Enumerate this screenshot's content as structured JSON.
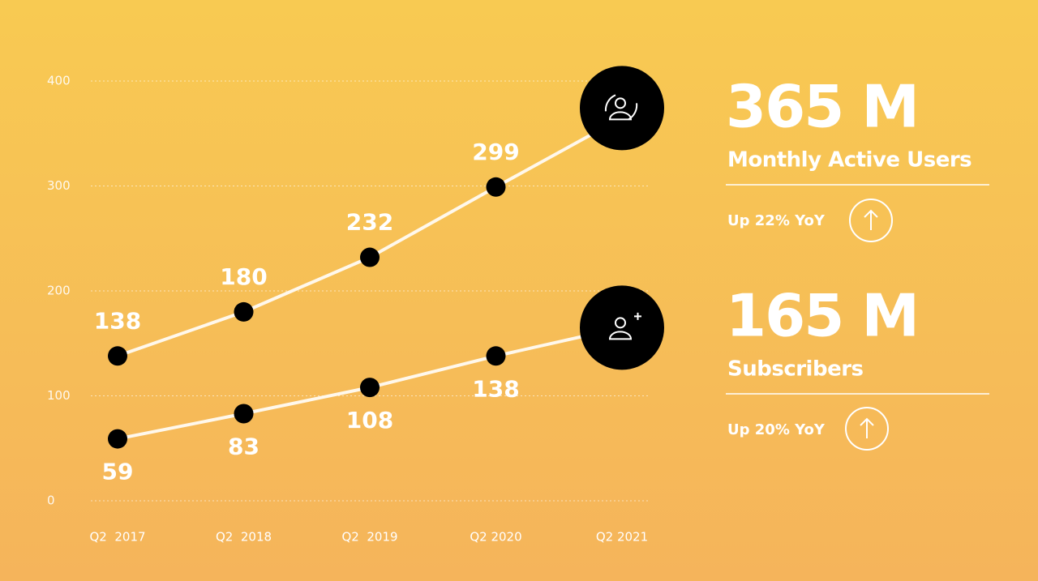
{
  "chart_data": {
    "type": "line",
    "categories": [
      "Q2  2017",
      "Q2  2018",
      "Q2  2019",
      "Q2 2020",
      "Q2 2021"
    ],
    "series": [
      {
        "name": "Monthly Active Users",
        "color": "#fff8ec",
        "marker_color": "#000000",
        "values": [
          138,
          180,
          232,
          299,
          365
        ],
        "value_labels": [
          "138",
          "180",
          "232",
          "299",
          "365 M"
        ],
        "label_position": "above",
        "change": "Up 22% YoY"
      },
      {
        "name": "Subscribers",
        "color": "#fff8ec",
        "marker_color": "#000000",
        "values": [
          59,
          83,
          108,
          138,
          165
        ],
        "value_labels": [
          "59",
          "83",
          "108",
          "138",
          "165 M"
        ],
        "label_position": "below",
        "change": "Up 20% YoY"
      }
    ],
    "ylim": [
      0,
      400
    ],
    "yticks": [
      0,
      100,
      200,
      300,
      400
    ],
    "grid": true
  }
}
